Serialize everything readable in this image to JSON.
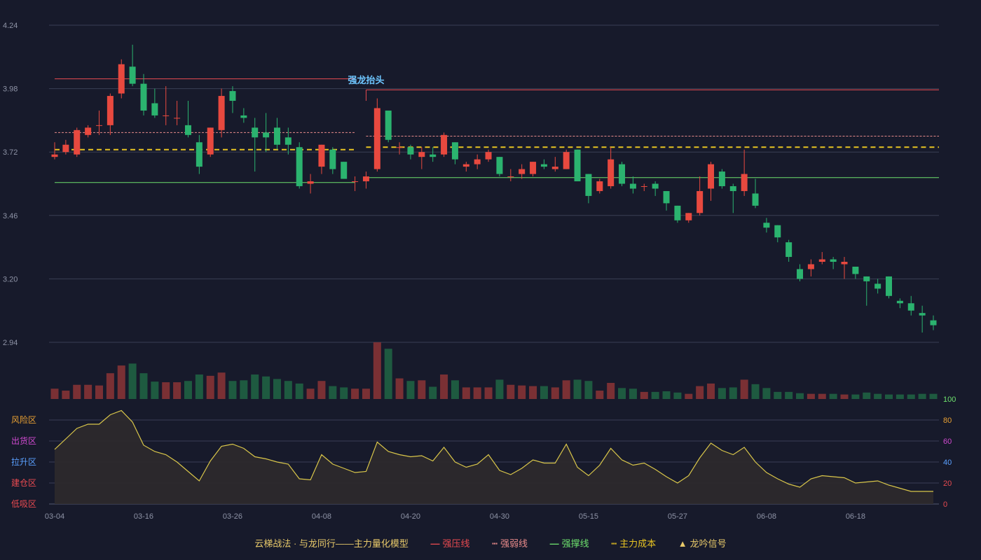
{
  "chart_data": {
    "type": "candlestick",
    "title": "",
    "price_axis": {
      "ticks": [
        2.94,
        3.2,
        3.46,
        3.72,
        3.98,
        4.24
      ],
      "ylim": [
        2.94,
        4.24
      ]
    },
    "osc_axis": {
      "ticks": [
        0,
        20,
        40,
        60,
        80,
        100
      ],
      "ylim": [
        0,
        100
      ]
    },
    "zones": [
      "低吸区",
      "建仓区",
      "拉升区",
      "出货区",
      "风险区"
    ],
    "x_tick_labels": [
      "03-04",
      "03-16",
      "03-26",
      "04-08",
      "04-20",
      "04-30",
      "05-15",
      "05-27",
      "06-08",
      "06-18"
    ],
    "annotation": "强龙抬头",
    "legend": {
      "title": "云梯战法 · 与龙同行——主力量化模型",
      "items": [
        "强压线",
        "强弱线",
        "强撑线",
        "主力成本",
        "龙吟信号"
      ]
    },
    "levels": [
      {
        "name": "强压线",
        "segments": [
          [
            0,
            27,
            4.02
          ],
          [
            28,
            79,
            3.975
          ]
        ]
      },
      {
        "name": "强弱线",
        "segments": [
          [
            0,
            27,
            3.8
          ],
          [
            28,
            79,
            3.785
          ]
        ]
      },
      {
        "name": "强撑线",
        "segments": [
          [
            0,
            27,
            3.595
          ],
          [
            28,
            79,
            3.615
          ]
        ]
      },
      {
        "name": "主力成本",
        "segments": [
          [
            0,
            27,
            3.73
          ],
          [
            28,
            79,
            3.74
          ]
        ]
      }
    ],
    "candles": [
      [
        3.7,
        3.71,
        3.76,
        3.69
      ],
      [
        3.72,
        3.75,
        3.77,
        3.71
      ],
      [
        3.71,
        3.81,
        3.82,
        3.7
      ],
      [
        3.79,
        3.82,
        3.83,
        3.78
      ],
      [
        3.83,
        3.83,
        3.89,
        3.79
      ],
      [
        3.83,
        3.95,
        3.96,
        3.79
      ],
      [
        3.96,
        4.08,
        4.1,
        3.94
      ],
      [
        4.07,
        4.0,
        4.16,
        3.99
      ],
      [
        4.0,
        3.89,
        4.04,
        3.87
      ],
      [
        3.92,
        3.87,
        3.98,
        3.86
      ],
      [
        3.87,
        3.87,
        3.99,
        3.83
      ],
      [
        3.86,
        3.86,
        3.93,
        3.83
      ],
      [
        3.83,
        3.79,
        3.93,
        3.78
      ],
      [
        3.76,
        3.66,
        3.79,
        3.63
      ],
      [
        3.71,
        3.82,
        3.82,
        3.7
      ],
      [
        3.81,
        3.95,
        3.98,
        3.78
      ],
      [
        3.97,
        3.93,
        3.99,
        3.88
      ],
      [
        3.87,
        3.86,
        3.9,
        3.84
      ],
      [
        3.82,
        3.78,
        3.86,
        3.64
      ],
      [
        3.8,
        3.78,
        3.88,
        3.72
      ],
      [
        3.82,
        3.75,
        3.86,
        3.73
      ],
      [
        3.78,
        3.75,
        3.82,
        3.71
      ],
      [
        3.74,
        3.58,
        3.76,
        3.57
      ],
      [
        3.59,
        3.6,
        3.63,
        3.55
      ],
      [
        3.66,
        3.75,
        3.75,
        3.63
      ],
      [
        3.73,
        3.65,
        3.74,
        3.63
      ],
      [
        3.68,
        3.61,
        3.68,
        3.61
      ],
      [
        3.6,
        3.6,
        3.62,
        3.56
      ],
      [
        3.6,
        3.62,
        3.64,
        3.57
      ],
      [
        3.65,
        3.9,
        3.94,
        3.64
      ],
      [
        3.89,
        3.77,
        3.89,
        3.76
      ],
      [
        3.74,
        3.74,
        3.76,
        3.71
      ],
      [
        3.74,
        3.71,
        3.75,
        3.69
      ],
      [
        3.7,
        3.72,
        3.74,
        3.65
      ],
      [
        3.71,
        3.7,
        3.74,
        3.68
      ],
      [
        3.71,
        3.79,
        3.8,
        3.7
      ],
      [
        3.76,
        3.69,
        3.76,
        3.67
      ],
      [
        3.66,
        3.67,
        3.68,
        3.64
      ],
      [
        3.67,
        3.69,
        3.71,
        3.65
      ],
      [
        3.69,
        3.72,
        3.73,
        3.68
      ],
      [
        3.7,
        3.63,
        3.7,
        3.62
      ],
      [
        3.62,
        3.62,
        3.65,
        3.6
      ],
      [
        3.63,
        3.65,
        3.67,
        3.61
      ],
      [
        3.63,
        3.68,
        3.68,
        3.62
      ],
      [
        3.67,
        3.66,
        3.69,
        3.65
      ],
      [
        3.65,
        3.66,
        3.7,
        3.64
      ],
      [
        3.65,
        3.72,
        3.73,
        3.65
      ],
      [
        3.73,
        3.6,
        3.73,
        3.6
      ],
      [
        3.63,
        3.54,
        3.63,
        3.51
      ],
      [
        3.56,
        3.6,
        3.61,
        3.55
      ],
      [
        3.58,
        3.69,
        3.74,
        3.57
      ],
      [
        3.67,
        3.59,
        3.68,
        3.58
      ],
      [
        3.59,
        3.57,
        3.62,
        3.55
      ],
      [
        3.58,
        3.58,
        3.59,
        3.56
      ],
      [
        3.59,
        3.57,
        3.6,
        3.54
      ],
      [
        3.56,
        3.51,
        3.56,
        3.48
      ],
      [
        3.5,
        3.44,
        3.5,
        3.43
      ],
      [
        3.44,
        3.47,
        3.47,
        3.43
      ],
      [
        3.47,
        3.56,
        3.62,
        3.46
      ],
      [
        3.57,
        3.67,
        3.68,
        3.52
      ],
      [
        3.64,
        3.58,
        3.65,
        3.57
      ],
      [
        3.58,
        3.56,
        3.59,
        3.47
      ],
      [
        3.56,
        3.63,
        3.73,
        3.54
      ],
      [
        3.55,
        3.5,
        3.61,
        3.49
      ],
      [
        3.43,
        3.41,
        3.45,
        3.39
      ],
      [
        3.42,
        3.37,
        3.42,
        3.35
      ],
      [
        3.35,
        3.29,
        3.36,
        3.27
      ],
      [
        3.24,
        3.2,
        3.26,
        3.19
      ],
      [
        3.24,
        3.26,
        3.28,
        3.21
      ],
      [
        3.27,
        3.28,
        3.31,
        3.26
      ],
      [
        3.28,
        3.27,
        3.29,
        3.24
      ],
      [
        3.26,
        3.27,
        3.29,
        3.2
      ],
      [
        3.25,
        3.22,
        3.25,
        3.2
      ],
      [
        3.21,
        3.19,
        3.21,
        3.09
      ],
      [
        3.18,
        3.16,
        3.2,
        3.14
      ],
      [
        3.21,
        3.13,
        3.21,
        3.12
      ],
      [
        3.11,
        3.1,
        3.12,
        3.08
      ],
      [
        3.1,
        3.07,
        3.13,
        3.05
      ],
      [
        3.06,
        3.05,
        3.09,
        2.98
      ],
      [
        3.03,
        3.01,
        3.05,
        2.99
      ]
    ],
    "volumes": [
      16,
      13,
      22,
      22,
      21,
      40,
      52,
      55,
      40,
      27,
      26,
      26,
      28,
      38,
      36,
      41,
      28,
      29,
      38,
      35,
      31,
      28,
      24,
      16,
      28,
      20,
      18,
      16,
      16,
      88,
      78,
      32,
      28,
      29,
      19,
      38,
      29,
      18,
      18,
      18,
      30,
      22,
      21,
      20,
      20,
      18,
      29,
      30,
      28,
      13,
      25,
      17,
      16,
      11,
      11,
      12,
      10,
      8,
      20,
      24,
      17,
      18,
      30,
      23,
      17,
      11,
      11,
      9,
      8,
      8,
      8,
      7,
      7,
      10,
      8,
      7,
      7,
      7,
      8,
      8
    ],
    "oscillator": [
      52,
      62,
      72,
      76,
      76,
      85,
      89,
      78,
      56,
      50,
      47,
      40,
      31,
      22,
      41,
      55,
      57,
      53,
      45,
      43,
      40,
      38,
      24,
      23,
      47,
      38,
      34,
      30,
      31,
      59,
      50,
      47,
      45,
      46,
      41,
      54,
      40,
      35,
      38,
      47,
      32,
      28,
      34,
      42,
      39,
      39,
      57,
      35,
      27,
      37,
      53,
      42,
      37,
      39,
      33,
      26,
      20,
      27,
      44,
      58,
      51,
      47,
      54,
      40,
      30,
      24,
      19,
      16,
      24,
      27,
      26,
      25,
      20,
      21,
      22,
      18,
      15,
      12,
      12,
      12
    ]
  },
  "colors": {
    "up": "#e8493f",
    "down": "#2bb36f",
    "resist": "#e84a50",
    "weak": "#e88a8a",
    "support": "#6de06d",
    "cost": "#e8c422",
    "osc_line": "#d9c64a",
    "grid": "#3a3f55",
    "axis_text": "#8e93a6"
  }
}
